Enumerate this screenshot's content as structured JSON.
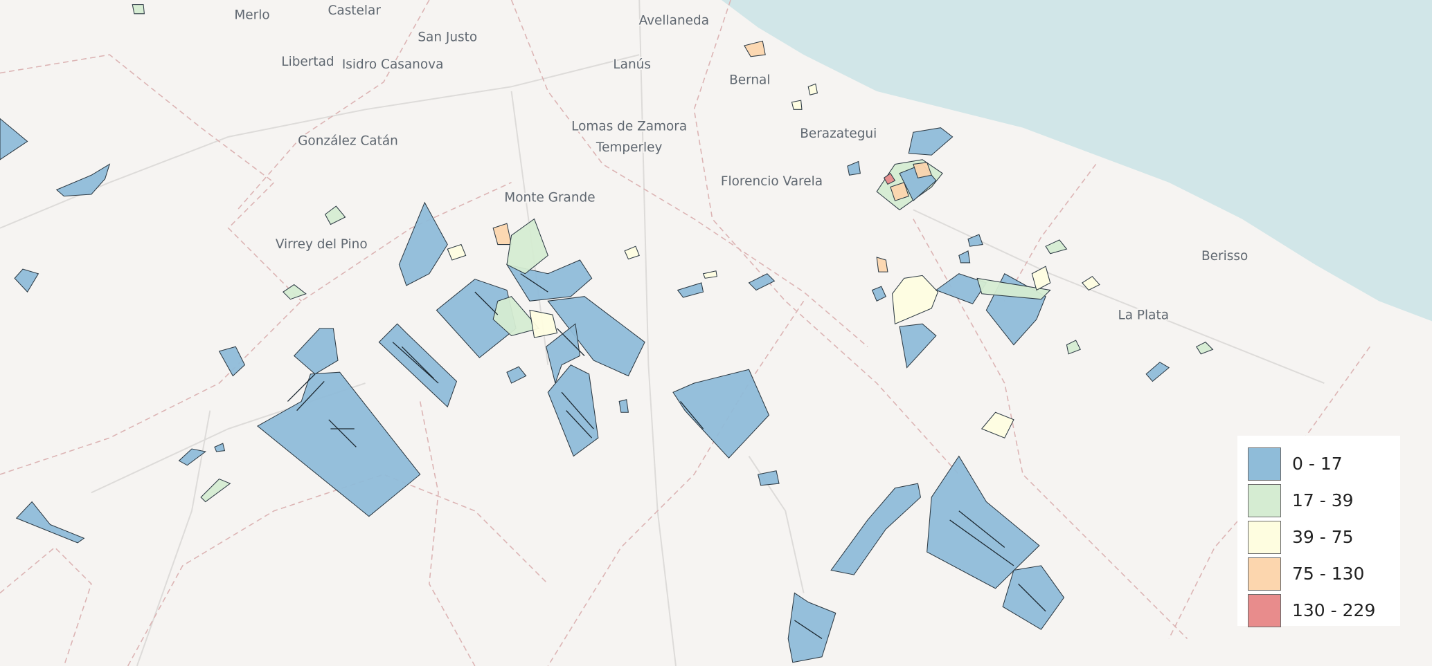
{
  "map": {
    "colors": {
      "land": "#f6f4f2",
      "sea": "#d1e6e8",
      "boundary": "#d9b0b0",
      "road": "#dcdcdc",
      "outline": "#2d3a44"
    },
    "places": [
      {
        "name": "Merlo"
      },
      {
        "name": "Castelar"
      },
      {
        "name": "San Justo"
      },
      {
        "name": "Avellaneda"
      },
      {
        "name": "Libertad"
      },
      {
        "name": "Isidro Casanova"
      },
      {
        "name": "Lanús"
      },
      {
        "name": "Bernal"
      },
      {
        "name": "Lomas de Zamora"
      },
      {
        "name": "Temperley"
      },
      {
        "name": "González Catán"
      },
      {
        "name": "Berazategui"
      },
      {
        "name": "Florencio Varela"
      },
      {
        "name": "Monte Grande"
      },
      {
        "name": "Virrey del Pino"
      },
      {
        "name": "Berisso"
      },
      {
        "name": "La Plata"
      }
    ]
  },
  "legend": {
    "classes": [
      {
        "label": "0 - 17",
        "color": "#8fbcd9"
      },
      {
        "label": "17 - 39",
        "color": "#d5ecd2"
      },
      {
        "label": "39 - 75",
        "color": "#fefde0"
      },
      {
        "label": "75 - 130",
        "color": "#fcd6ae"
      },
      {
        "label": "130 - 229",
        "color": "#e88c8c"
      }
    ]
  }
}
